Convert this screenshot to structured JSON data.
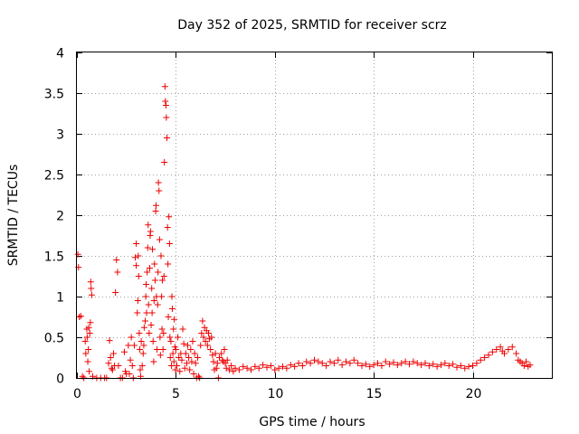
{
  "chart_data": {
    "type": "scatter",
    "title": "Day 352 of 2025, SRMTID for receiver scrz",
    "xlabel": "GPS time / hours",
    "ylabel": "SRMTID / TECUs",
    "xlim": [
      0,
      24
    ],
    "ylim": [
      0,
      4
    ],
    "x_ticks": [
      0,
      5,
      10,
      15,
      20
    ],
    "x_tick_labels": [
      "0",
      "5",
      "10",
      "15",
      "20"
    ],
    "y_ticks": [
      0,
      0.5,
      1,
      1.5,
      2,
      2.5,
      3,
      3.5,
      4
    ],
    "y_tick_labels": [
      "0",
      "0.5",
      "1",
      "1.5",
      "2",
      "2.5",
      "3",
      "3.5",
      "4"
    ],
    "grid": true,
    "marker": "plus",
    "colors": {
      "series": "#ee0000",
      "grid": "#a0a0a0",
      "axis": "#000000"
    },
    "series": [
      {
        "name": "scrz",
        "points": [
          [
            0.05,
            1.52
          ],
          [
            0.08,
            1.36
          ],
          [
            0.12,
            0.75
          ],
          [
            0.2,
            0.76
          ],
          [
            0.28,
            0.02
          ],
          [
            0.35,
            0.0
          ],
          [
            0.42,
            0.45
          ],
          [
            0.45,
            0.3
          ],
          [
            0.5,
            0.6
          ],
          [
            0.52,
            0.5
          ],
          [
            0.55,
            0.2
          ],
          [
            0.58,
            0.35
          ],
          [
            0.6,
            0.62
          ],
          [
            0.62,
            0.08
          ],
          [
            0.65,
            0.55
          ],
          [
            0.68,
            0.68
          ],
          [
            0.7,
            1.18
          ],
          [
            0.72,
            1.1
          ],
          [
            0.75,
            1.02
          ],
          [
            0.8,
            0.02
          ],
          [
            1.0,
            0.0
          ],
          [
            1.2,
            0.0
          ],
          [
            1.4,
            0.0
          ],
          [
            1.5,
            0.0
          ],
          [
            1.6,
            0.18
          ],
          [
            1.65,
            0.46
          ],
          [
            1.7,
            0.25
          ],
          [
            1.75,
            0.12
          ],
          [
            1.8,
            0.1
          ],
          [
            1.85,
            0.3
          ],
          [
            1.9,
            0.15
          ],
          [
            1.95,
            1.05
          ],
          [
            2.0,
            1.45
          ],
          [
            2.05,
            1.3
          ],
          [
            2.1,
            0.15
          ],
          [
            2.2,
            0.0
          ],
          [
            2.3,
            0.0
          ],
          [
            2.4,
            0.32
          ],
          [
            2.45,
            0.08
          ],
          [
            2.5,
            0.05
          ],
          [
            2.6,
            0.4
          ],
          [
            2.65,
            0.05
          ],
          [
            2.7,
            0.22
          ],
          [
            2.75,
            0.5
          ],
          [
            2.8,
            0.15
          ],
          [
            2.85,
            0.0
          ],
          [
            2.9,
            0.4
          ],
          [
            2.95,
            1.48
          ],
          [
            3.0,
            1.65
          ],
          [
            3.0,
            1.38
          ],
          [
            3.05,
            0.8
          ],
          [
            3.08,
            0.95
          ],
          [
            3.1,
            1.5
          ],
          [
            3.12,
            1.25
          ],
          [
            3.15,
            0.55
          ],
          [
            3.18,
            0.35
          ],
          [
            3.2,
            0.1
          ],
          [
            3.22,
            0.02
          ],
          [
            3.25,
            0.45
          ],
          [
            3.3,
            0.15
          ],
          [
            3.35,
            0.3
          ],
          [
            3.38,
            0.4
          ],
          [
            3.4,
            0.62
          ],
          [
            3.45,
            0.7
          ],
          [
            3.48,
            1.0
          ],
          [
            3.5,
            1.15
          ],
          [
            3.52,
            0.8
          ],
          [
            3.55,
            1.3
          ],
          [
            3.58,
            1.6
          ],
          [
            3.6,
            1.88
          ],
          [
            3.62,
            0.9
          ],
          [
            3.65,
            0.55
          ],
          [
            3.68,
            1.35
          ],
          [
            3.7,
            1.75
          ],
          [
            3.72,
            1.8
          ],
          [
            3.75,
            0.65
          ],
          [
            3.78,
            1.1
          ],
          [
            3.8,
            0.8
          ],
          [
            3.82,
            1.58
          ],
          [
            3.85,
            0.45
          ],
          [
            3.88,
            0.2
          ],
          [
            3.9,
            0.95
          ],
          [
            3.92,
            1.4
          ],
          [
            3.95,
            1.2
          ],
          [
            3.98,
            2.05
          ],
          [
            4.0,
            2.12
          ],
          [
            4.02,
            1.0
          ],
          [
            4.05,
            0.35
          ],
          [
            4.08,
            0.9
          ],
          [
            4.1,
            1.3
          ],
          [
            4.12,
            2.4
          ],
          [
            4.15,
            2.3
          ],
          [
            4.18,
            1.7
          ],
          [
            4.2,
            0.5
          ],
          [
            4.22,
            0.28
          ],
          [
            4.25,
            1.5
          ],
          [
            4.28,
            1.0
          ],
          [
            4.3,
            0.6
          ],
          [
            4.32,
            1.2
          ],
          [
            4.35,
            0.35
          ],
          [
            4.38,
            0.55
          ],
          [
            4.4,
            1.25
          ],
          [
            4.42,
            2.65
          ],
          [
            4.45,
            3.58
          ],
          [
            4.47,
            3.4
          ],
          [
            4.5,
            3.35
          ],
          [
            4.52,
            3.2
          ],
          [
            4.55,
            2.95
          ],
          [
            4.58,
            1.85
          ],
          [
            4.6,
            1.4
          ],
          [
            4.62,
            0.75
          ],
          [
            4.65,
            1.98
          ],
          [
            4.68,
            1.65
          ],
          [
            4.7,
            0.5
          ],
          [
            4.72,
            0.25
          ],
          [
            4.75,
            0.45
          ],
          [
            4.78,
            0.15
          ],
          [
            4.8,
            1.0
          ],
          [
            4.82,
            0.85
          ],
          [
            4.85,
            0.3
          ],
          [
            4.88,
            0.6
          ],
          [
            4.9,
            0.2
          ],
          [
            4.92,
            0.72
          ],
          [
            4.95,
            0.38
          ],
          [
            4.98,
            0.1
          ],
          [
            5.0,
            0.35
          ],
          [
            5.05,
            0.15
          ],
          [
            5.1,
            0.5
          ],
          [
            5.15,
            0.25
          ],
          [
            5.2,
            0.08
          ],
          [
            5.25,
            0.3
          ],
          [
            5.3,
            0.22
          ],
          [
            5.35,
            0.6
          ],
          [
            5.4,
            0.42
          ],
          [
            5.45,
            0.12
          ],
          [
            5.5,
            0.3
          ],
          [
            5.55,
            0.18
          ],
          [
            5.6,
            0.4
          ],
          [
            5.65,
            0.25
          ],
          [
            5.7,
            0.1
          ],
          [
            5.75,
            0.35
          ],
          [
            5.8,
            0.2
          ],
          [
            5.85,
            0.45
          ],
          [
            5.9,
            0.05
          ],
          [
            5.95,
            0.3
          ],
          [
            6.0,
            0.18
          ],
          [
            6.05,
            0.0
          ],
          [
            6.1,
            0.25
          ],
          [
            6.15,
            0.02
          ],
          [
            6.2,
            0.0
          ],
          [
            6.25,
            0.4
          ],
          [
            6.3,
            0.55
          ],
          [
            6.35,
            0.7
          ],
          [
            6.4,
            0.5
          ],
          [
            6.45,
            0.62
          ],
          [
            6.5,
            0.45
          ],
          [
            6.55,
            0.58
          ],
          [
            6.6,
            0.4
          ],
          [
            6.65,
            0.55
          ],
          [
            6.7,
            0.48
          ],
          [
            6.75,
            0.35
          ],
          [
            6.8,
            0.5
          ],
          [
            6.85,
            0.28
          ],
          [
            6.9,
            0.2
          ],
          [
            6.95,
            0.1
          ],
          [
            7.0,
            0.3
          ],
          [
            7.05,
            0.12
          ],
          [
            7.1,
            0.18
          ],
          [
            7.15,
            0.0
          ],
          [
            7.2,
            0.25
          ],
          [
            7.3,
            0.3
          ],
          [
            7.35,
            0.22
          ],
          [
            7.4,
            0.2
          ],
          [
            7.45,
            0.35
          ],
          [
            7.5,
            0.18
          ],
          [
            7.55,
            0.12
          ],
          [
            7.6,
            0.22
          ],
          [
            7.7,
            0.1
          ],
          [
            7.8,
            0.15
          ],
          [
            7.9,
            0.08
          ],
          [
            8.0,
            0.12
          ],
          [
            8.2,
            0.1
          ],
          [
            8.4,
            0.14
          ],
          [
            8.6,
            0.12
          ],
          [
            8.8,
            0.1
          ],
          [
            9.0,
            0.14
          ],
          [
            9.2,
            0.12
          ],
          [
            9.4,
            0.16
          ],
          [
            9.6,
            0.13
          ],
          [
            9.8,
            0.15
          ],
          [
            10.0,
            0.1
          ],
          [
            10.2,
            0.12
          ],
          [
            10.4,
            0.14
          ],
          [
            10.6,
            0.12
          ],
          [
            10.8,
            0.16
          ],
          [
            11.0,
            0.14
          ],
          [
            11.2,
            0.18
          ],
          [
            11.4,
            0.15
          ],
          [
            11.6,
            0.2
          ],
          [
            11.8,
            0.18
          ],
          [
            12.0,
            0.22
          ],
          [
            12.2,
            0.2
          ],
          [
            12.4,
            0.18
          ],
          [
            12.6,
            0.15
          ],
          [
            12.8,
            0.2
          ],
          [
            13.0,
            0.18
          ],
          [
            13.2,
            0.22
          ],
          [
            13.4,
            0.16
          ],
          [
            13.6,
            0.2
          ],
          [
            13.8,
            0.18
          ],
          [
            14.0,
            0.22
          ],
          [
            14.2,
            0.18
          ],
          [
            14.4,
            0.15
          ],
          [
            14.6,
            0.17
          ],
          [
            14.8,
            0.14
          ],
          [
            15.0,
            0.16
          ],
          [
            15.2,
            0.18
          ],
          [
            15.4,
            0.15
          ],
          [
            15.6,
            0.2
          ],
          [
            15.8,
            0.17
          ],
          [
            16.0,
            0.19
          ],
          [
            16.2,
            0.16
          ],
          [
            16.4,
            0.18
          ],
          [
            16.6,
            0.2
          ],
          [
            16.8,
            0.17
          ],
          [
            17.0,
            0.2
          ],
          [
            17.2,
            0.18
          ],
          [
            17.4,
            0.16
          ],
          [
            17.6,
            0.18
          ],
          [
            17.8,
            0.15
          ],
          [
            18.0,
            0.17
          ],
          [
            18.2,
            0.14
          ],
          [
            18.4,
            0.16
          ],
          [
            18.6,
            0.18
          ],
          [
            18.8,
            0.15
          ],
          [
            19.0,
            0.17
          ],
          [
            19.2,
            0.13
          ],
          [
            19.4,
            0.15
          ],
          [
            19.6,
            0.12
          ],
          [
            19.8,
            0.14
          ],
          [
            20.0,
            0.15
          ],
          [
            20.2,
            0.18
          ],
          [
            20.4,
            0.22
          ],
          [
            20.6,
            0.25
          ],
          [
            20.8,
            0.28
          ],
          [
            21.0,
            0.32
          ],
          [
            21.2,
            0.35
          ],
          [
            21.4,
            0.38
          ],
          [
            21.5,
            0.33
          ],
          [
            21.6,
            0.3
          ],
          [
            21.8,
            0.35
          ],
          [
            22.0,
            0.38
          ],
          [
            22.2,
            0.3
          ],
          [
            22.3,
            0.22
          ],
          [
            22.4,
            0.2
          ],
          [
            22.5,
            0.18
          ],
          [
            22.6,
            0.15
          ],
          [
            22.7,
            0.2
          ],
          [
            22.8,
            0.14
          ],
          [
            22.9,
            0.16
          ]
        ]
      }
    ]
  }
}
